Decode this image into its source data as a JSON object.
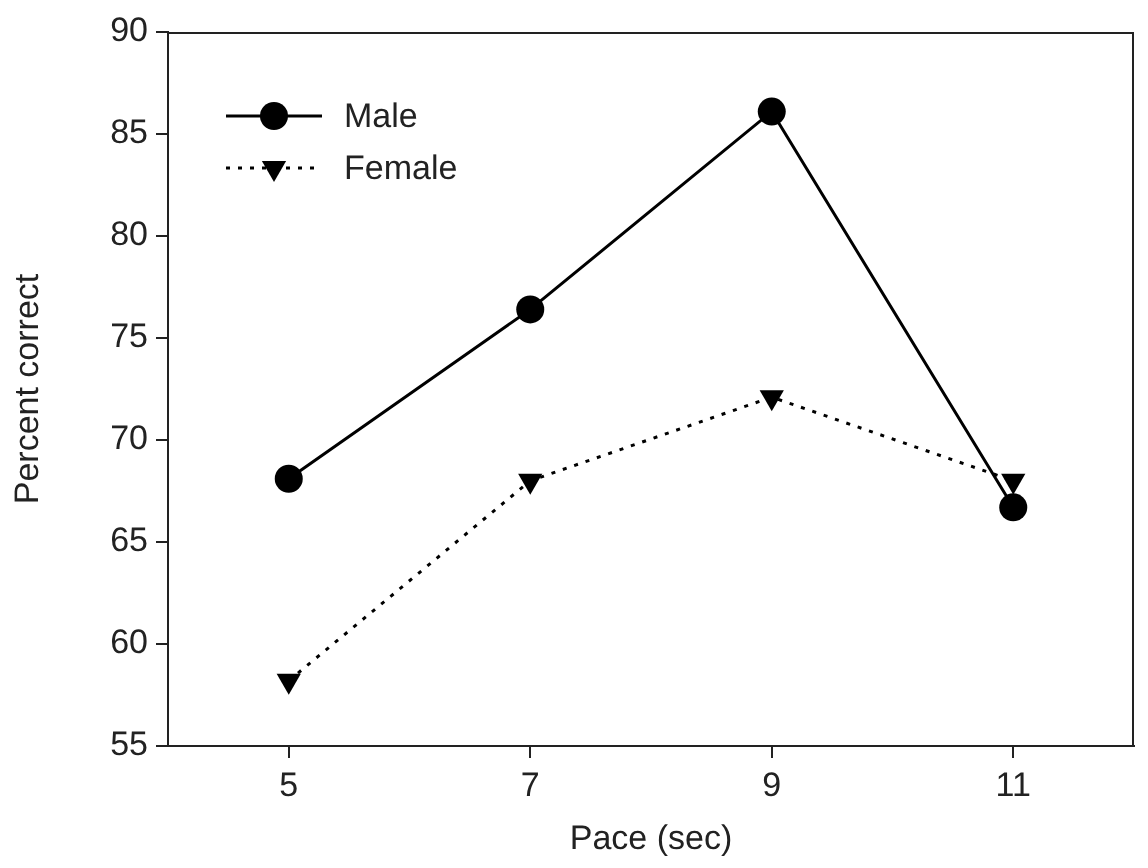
{
  "chart_data": {
    "type": "line",
    "xlabel": "Pace (sec)",
    "ylabel": "Percent correct",
    "x": [
      5,
      7,
      9,
      11
    ],
    "series": [
      {
        "name": "Male",
        "color": "#000000",
        "values": [
          68.1,
          76.4,
          86.1,
          66.7
        ],
        "marker": "circle",
        "line_style": "solid"
      },
      {
        "name": "Female",
        "color": "#000000",
        "values": [
          58.2,
          68.0,
          72.1,
          68.0
        ],
        "marker": "triangle",
        "line_style": "dotted"
      }
    ],
    "xlim": [
      4,
      12
    ],
    "xticks": [
      5,
      7,
      9,
      11
    ],
    "ylim": [
      55,
      90
    ],
    "yticks": [
      55,
      60,
      65,
      70,
      75,
      80,
      85,
      90
    ],
    "grid": false,
    "legend": "top left"
  }
}
